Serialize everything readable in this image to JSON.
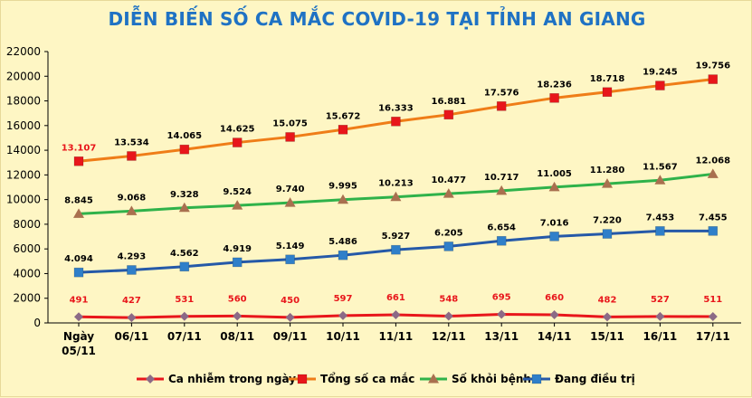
{
  "chart_data": {
    "type": "line",
    "title": "DIỄN BIẾN SỐ CA MẮC COVID-19 TẠI TỈNH AN GIANG",
    "categories": [
      [
        "Ngày",
        "05/11"
      ],
      [
        "06/11"
      ],
      [
        "07/11"
      ],
      [
        "08/11"
      ],
      [
        "09/11"
      ],
      [
        "10/11"
      ],
      [
        "11/11"
      ],
      [
        "12/11"
      ],
      [
        "13/11"
      ],
      [
        "14/11"
      ],
      [
        "15/11"
      ],
      [
        "16/11"
      ],
      [
        "17/11"
      ]
    ],
    "ylim": [
      0,
      22000
    ],
    "yticks": [
      "0",
      "2000",
      "4000",
      "6000",
      "8000",
      "10000",
      "12000",
      "14000",
      "16000",
      "18000",
      "20000",
      "22000"
    ],
    "grid": false,
    "legend": "bottom",
    "series": [
      {
        "name": "Ca nhiễm trong ngày",
        "color": "#e8161b",
        "marker": "diamond",
        "marker_color": "#8c6a86",
        "label_color": "#e8161b",
        "values": [
          491,
          427,
          531,
          560,
          450,
          597,
          661,
          548,
          695,
          660,
          482,
          527,
          511
        ],
        "labels": [
          "491",
          "427",
          "531",
          "560",
          "450",
          "597",
          "661",
          "548",
          "695",
          "660",
          "482",
          "527",
          "511"
        ]
      },
      {
        "name": "Tổng số ca mắc",
        "color": "#ef7d18",
        "marker": "square",
        "marker_color": "#e8161b",
        "label_color": "#000000",
        "first_label_color": "#e8161b",
        "values": [
          13107,
          13534,
          14065,
          14625,
          15075,
          15672,
          16333,
          16881,
          17576,
          18236,
          18718,
          19245,
          19756
        ],
        "labels": [
          "13.107",
          "13.534",
          "14.065",
          "14.625",
          "15.075",
          "15.672",
          "16.333",
          "16.881",
          "17.576",
          "18.236",
          "18.718",
          "19.245",
          "19.756"
        ]
      },
      {
        "name": "Số khỏi bệnh",
        "color": "#2fb24a",
        "marker": "triangle",
        "marker_color": "#a9704f",
        "label_color": "#000000",
        "values": [
          8845,
          9068,
          9328,
          9524,
          9740,
          9995,
          10213,
          10477,
          10717,
          11005,
          11280,
          11567,
          12068
        ],
        "labels": [
          "8.845",
          "9.068",
          "9.328",
          "9.524",
          "9.740",
          "9.995",
          "10.213",
          "10.477",
          "10.717",
          "11.005",
          "11.280",
          "11.567",
          "12.068"
        ]
      },
      {
        "name": "Đang điều trị",
        "color": "#2559a8",
        "marker": "square",
        "marker_color": "#2f7fc9",
        "label_color": "#000000",
        "values": [
          4094,
          4293,
          4562,
          4919,
          5149,
          5486,
          5927,
          6205,
          6654,
          7016,
          7220,
          7453,
          7455
        ],
        "labels": [
          "4.094",
          "4.293",
          "4.562",
          "4.919",
          "5.149",
          "5.486",
          "5.927",
          "6.205",
          "6.654",
          "7.016",
          "7.220",
          "7.453",
          "7.455"
        ]
      }
    ]
  }
}
